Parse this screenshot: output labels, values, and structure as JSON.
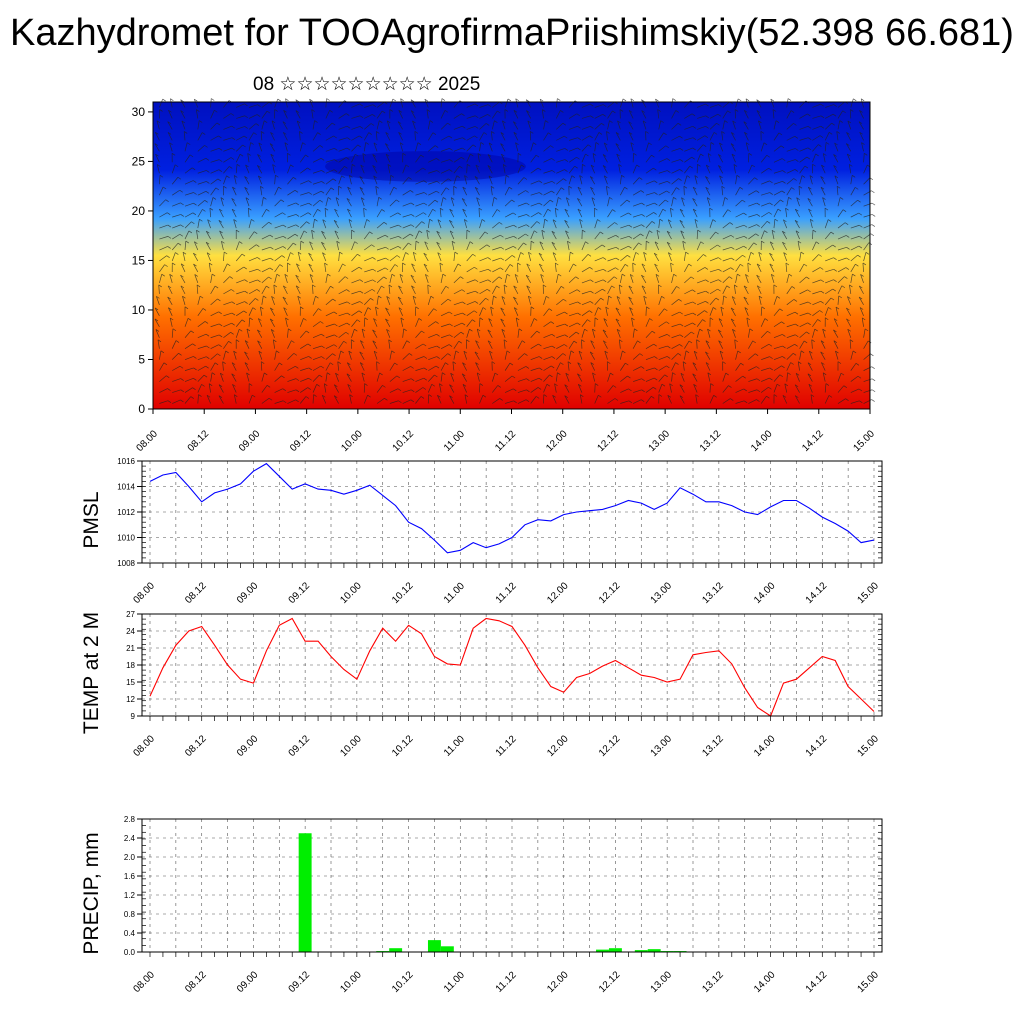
{
  "title": "Kazhydromet for TOOAgrofirmaPriishimskiy(52.398 66.681)",
  "subtitle": "08 ☆☆☆☆☆☆☆☆☆ 2025",
  "time_ticks": [
    "08.00",
    "08.12",
    "09.00",
    "09.12",
    "10.00",
    "10.12",
    "11.00",
    "11.12",
    "12.00",
    "12.12",
    "13.00",
    "13.12",
    "14.00",
    "14.12",
    "15.00"
  ],
  "chart_data": [
    {
      "type": "heatmap",
      "name": "cross-section",
      "x_ticks": [
        "08.00",
        "08.12",
        "09.00",
        "09.12",
        "10.00",
        "10.12",
        "11.00",
        "11.12",
        "12.00",
        "12.12",
        "13.00",
        "13.12",
        "14.00",
        "14.12",
        "15.00"
      ],
      "ylim": [
        0,
        31
      ],
      "y_ticks": [
        0,
        5,
        10,
        15,
        20,
        25,
        30
      ],
      "color_scale": [
        "#e00000",
        "#ff7000",
        "#ffe040",
        "#3aa0ff",
        "#0020e0",
        "#0010c0"
      ],
      "overlay": "wind barbs"
    },
    {
      "type": "line",
      "ylabel": "PMSL",
      "color": "#0000ff",
      "ylim": [
        1008,
        1016
      ],
      "y_ticks": [
        1008,
        1010,
        1012,
        1014,
        1016
      ],
      "values": [
        1014.4,
        1014.9,
        1015.1,
        1014.0,
        1012.8,
        1013.5,
        1013.8,
        1014.2,
        1015.2,
        1015.8,
        1014.8,
        1013.8,
        1014.2,
        1013.8,
        1013.7,
        1013.4,
        1013.7,
        1014.1,
        1013.3,
        1012.5,
        1011.2,
        1010.7,
        1009.8,
        1008.8,
        1009.0,
        1009.6,
        1009.2,
        1009.5,
        1010.0,
        1011.0,
        1011.4,
        1011.3,
        1011.8,
        1012.0,
        1012.1,
        1012.2,
        1012.5,
        1012.9,
        1012.7,
        1012.2,
        1012.7,
        1013.9,
        1013.4,
        1012.8,
        1012.8,
        1012.5,
        1012.0,
        1011.8,
        1012.4,
        1012.9,
        1012.9,
        1012.3,
        1011.6,
        1011.1,
        1010.5,
        1009.6,
        1009.8
      ]
    },
    {
      "type": "line",
      "ylabel": "TEMP at 2 M",
      "color": "#ff0000",
      "ylim": [
        9,
        27
      ],
      "y_ticks": [
        9,
        12,
        15,
        18,
        21,
        24,
        27
      ],
      "values": [
        12.5,
        17.5,
        21.5,
        24.0,
        24.8,
        21.5,
        18.0,
        15.5,
        14.8,
        20.5,
        25.0,
        26.2,
        22.2,
        22.2,
        19.5,
        17.2,
        15.5,
        20.5,
        24.5,
        22.2,
        25.0,
        23.5,
        19.5,
        18.2,
        18.0,
        24.5,
        26.2,
        25.8,
        24.8,
        21.5,
        17.5,
        14.2,
        13.2,
        15.8,
        16.5,
        17.8,
        18.8,
        17.5,
        16.2,
        15.8,
        15.0,
        15.5,
        19.8,
        20.2,
        20.5,
        18.2,
        14.0,
        10.5,
        9.0,
        14.8,
        15.5,
        17.5,
        19.5,
        18.8,
        14.2,
        12.0,
        9.8
      ]
    },
    {
      "type": "bar",
      "ylabel": "PRECIP, mm",
      "color": "#00ee00",
      "ylim": [
        0,
        2.8
      ],
      "y_ticks": [
        "0.0",
        "0.4",
        "0.8",
        "1.2",
        "1.6",
        "2.0",
        "2.4",
        "2.8"
      ],
      "values": [
        0,
        0,
        0,
        0,
        0,
        0,
        0,
        0,
        0,
        0,
        0,
        0,
        2.5,
        0,
        0,
        0,
        0,
        0,
        0.02,
        0.08,
        0,
        0,
        0.25,
        0.12,
        0,
        0,
        0,
        0,
        0,
        0,
        0,
        0,
        0,
        0,
        0,
        0.05,
        0.08,
        0,
        0.04,
        0.06,
        0.02,
        0.02,
        0.01,
        0,
        0,
        0,
        0,
        0,
        0,
        0,
        0,
        0,
        0,
        0,
        0,
        0,
        0
      ]
    }
  ]
}
